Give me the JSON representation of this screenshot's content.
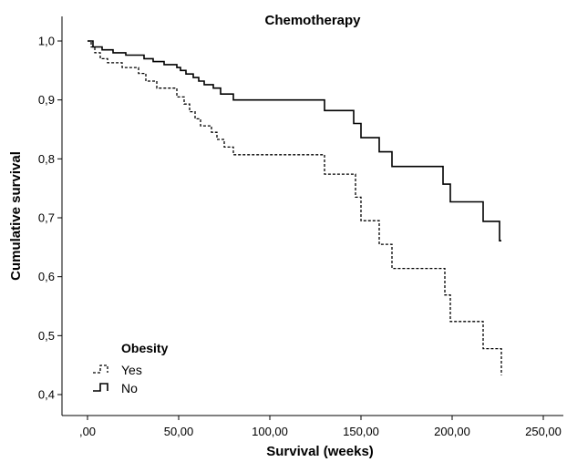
{
  "chart_data": {
    "type": "line",
    "title": "Chemotherapy",
    "xlabel": "Survival (weeks)",
    "ylabel": "Cumulative survival",
    "xlim": [
      0,
      250
    ],
    "ylim": [
      0.4,
      1.0
    ],
    "x_ticks": [
      0,
      50,
      100,
      150,
      200,
      250
    ],
    "x_tick_labels": [
      ",00",
      "50,00",
      "100,00",
      "150,00",
      "200,00",
      "250,00"
    ],
    "y_ticks": [
      0.4,
      0.5,
      0.6,
      0.7,
      0.8,
      0.9,
      1.0
    ],
    "y_tick_labels": [
      "0,4",
      "0,5",
      "0,6",
      "0,7",
      "0,8",
      "0,9",
      "1,0"
    ],
    "grid": false,
    "legend": {
      "title": "Obesity",
      "position": "bottom-left"
    },
    "series": [
      {
        "name": "Yes",
        "style": "dashed",
        "color": "#000000",
        "steps": [
          [
            0,
            1.0
          ],
          [
            2,
            0.99
          ],
          [
            4,
            0.98
          ],
          [
            7,
            0.97
          ],
          [
            11,
            0.963
          ],
          [
            19,
            0.955
          ],
          [
            28,
            0.945
          ],
          [
            32,
            0.932
          ],
          [
            38,
            0.92
          ],
          [
            49,
            0.905
          ],
          [
            53,
            0.893
          ],
          [
            56,
            0.88
          ],
          [
            59,
            0.868
          ],
          [
            62,
            0.856
          ],
          [
            68,
            0.845
          ],
          [
            71,
            0.833
          ],
          [
            75,
            0.82
          ],
          [
            80,
            0.807
          ],
          [
            130,
            0.774
          ],
          [
            147,
            0.735
          ],
          [
            150,
            0.695
          ],
          [
            160,
            0.655
          ],
          [
            167,
            0.614
          ],
          [
            196,
            0.569
          ],
          [
            199,
            0.524
          ],
          [
            217,
            0.478
          ],
          [
            227,
            0.433
          ]
        ],
        "end_x": 227
      },
      {
        "name": "No",
        "style": "solid",
        "color": "#000000",
        "steps": [
          [
            0,
            1.0
          ],
          [
            3,
            0.99
          ],
          [
            8,
            0.985
          ],
          [
            14,
            0.98
          ],
          [
            21,
            0.976
          ],
          [
            31,
            0.97
          ],
          [
            36,
            0.965
          ],
          [
            42,
            0.96
          ],
          [
            49,
            0.955
          ],
          [
            51,
            0.95
          ],
          [
            54,
            0.944
          ],
          [
            58,
            0.938
          ],
          [
            61,
            0.932
          ],
          [
            64,
            0.926
          ],
          [
            69,
            0.92
          ],
          [
            73,
            0.91
          ],
          [
            80,
            0.9
          ],
          [
            130,
            0.882
          ],
          [
            146,
            0.86
          ],
          [
            150,
            0.836
          ],
          [
            160,
            0.812
          ],
          [
            167,
            0.787
          ],
          [
            195,
            0.757
          ],
          [
            199,
            0.727
          ],
          [
            217,
            0.694
          ],
          [
            226,
            0.661
          ]
        ],
        "end_x": 227
      }
    ]
  }
}
